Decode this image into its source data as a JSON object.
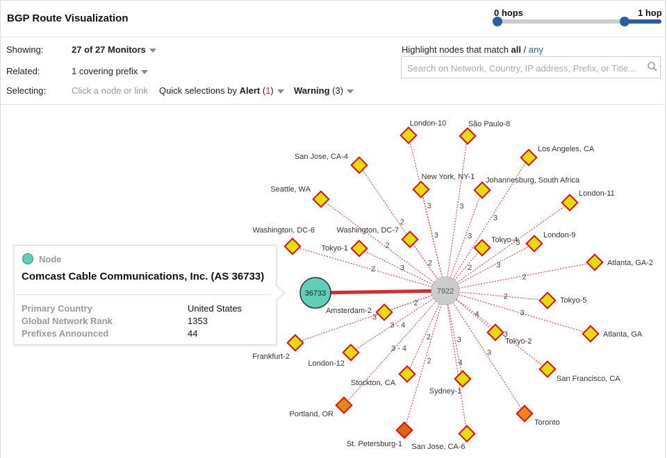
{
  "header": {
    "title": "BGP Route Visualization",
    "hops_min_label": "0 hops",
    "hops_max_label": "1 hop"
  },
  "controls": {
    "showing_label": "Showing:",
    "showing_value": "27 of 27 Monitors",
    "related_label": "Related:",
    "related_value": "1 covering prefix",
    "selecting_label": "Selecting:",
    "selecting_hint": "Click a node or link",
    "quick_prefix": "Quick selections by ",
    "alert_label": "Alert",
    "alert_count": "1",
    "warning_label": "Warning",
    "warning_count": "(3)",
    "highlight_prefix": "Highlight nodes that match ",
    "highlight_all": "all",
    "highlight_sep": " / ",
    "highlight_any": "any",
    "search_placeholder": "Search on Network, Country, IP address, Prefix, or Title..."
  },
  "popup": {
    "type_label": "Node",
    "name": "Comcast Cable Communications, Inc. (AS 36733)",
    "fields": [
      {
        "key": "Primary Country",
        "value": "United States"
      },
      {
        "key": "Global Network Rank",
        "value": "1353"
      },
      {
        "key": "Prefixes Announced",
        "value": "44"
      }
    ]
  },
  "graph": {
    "origin_label": "36733",
    "hub_label": "7922",
    "colors": {
      "origin": "#5fd0b5",
      "hub": "#cccccc",
      "monitor": "#e3dc0e",
      "monitor_warn": "#e08a1a",
      "monitor_alert": "#d86a10",
      "edge": "#d92b2b"
    },
    "monitors": [
      {
        "name": "London-10",
        "hop": "3",
        "status": "ok"
      },
      {
        "name": "São Paulo-8",
        "hop": "3",
        "status": "ok"
      },
      {
        "name": "Los Angeles, CA",
        "hop": "3",
        "status": "ok"
      },
      {
        "name": "San Jose, CA-4",
        "hop": "2",
        "status": "ok"
      },
      {
        "name": "New York, NY-1",
        "hop": "3",
        "status": "ok"
      },
      {
        "name": "Johannesburg, South Africa",
        "hop": "3",
        "status": "ok"
      },
      {
        "name": "London-11",
        "hop": "3",
        "status": "ok"
      },
      {
        "name": "Seattle, WA",
        "hop": "2",
        "status": "ok"
      },
      {
        "name": "Washington, DC-7",
        "hop": "2",
        "status": "ok"
      },
      {
        "name": "Tokyo-4",
        "hop": "2",
        "status": "ok"
      },
      {
        "name": "London-9",
        "hop": "3",
        "status": "ok"
      },
      {
        "name": "Washington, DC-6",
        "hop": "2",
        "status": "ok"
      },
      {
        "name": "Tokyo-1",
        "hop": "3",
        "status": "ok"
      },
      {
        "name": "Atlanta, GA-2",
        "hop": "2",
        "status": "ok"
      },
      {
        "name": "Tokyo-5",
        "hop": "2",
        "status": "ok"
      },
      {
        "name": "Amsterdam-2",
        "hop": "2",
        "status": "ok"
      },
      {
        "name": "Atlanta, GA",
        "hop": "3",
        "status": "ok"
      },
      {
        "name": "Frankfurt-2",
        "hop": "3",
        "status": "ok"
      },
      {
        "name": "London-12",
        "hop": "3 - 4",
        "status": "ok"
      },
      {
        "name": "Tokyo-2",
        "hop": "4",
        "status": "ok"
      },
      {
        "name": "Stockton, CA",
        "hop": "2",
        "status": "ok"
      },
      {
        "name": "San Francisco, CA",
        "hop": "3",
        "status": "ok"
      },
      {
        "name": "Sydney-1",
        "hop": "3",
        "status": "ok"
      },
      {
        "name": "Portland, OR",
        "hop": "3 - 4",
        "status": "warn"
      },
      {
        "name": "Toronto",
        "hop": "3",
        "status": "warn"
      },
      {
        "name": "St. Petersburg-1",
        "hop": "2",
        "status": "alert"
      },
      {
        "name": "San Jose, CA-6",
        "hop": "4",
        "status": "ok"
      }
    ]
  }
}
